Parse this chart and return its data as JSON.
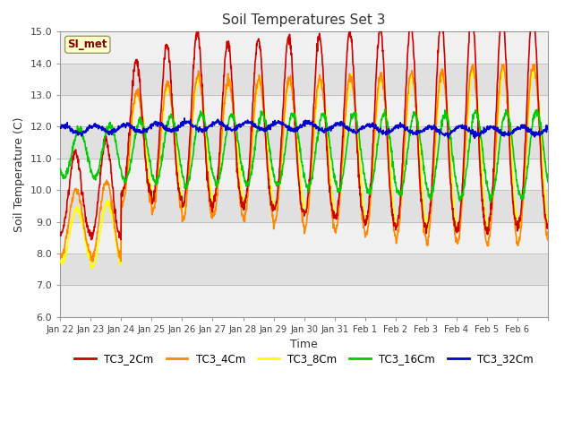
{
  "title": "Soil Temperatures Set 3",
  "xlabel": "Time",
  "ylabel": "Soil Temperature (C)",
  "ylim": [
    6.0,
    15.0
  ],
  "yticks": [
    6.0,
    7.0,
    8.0,
    9.0,
    10.0,
    11.0,
    12.0,
    13.0,
    14.0,
    15.0
  ],
  "series": {
    "TC3_2Cm": {
      "color": "#CC0000",
      "lw": 1.2
    },
    "TC3_4Cm": {
      "color": "#FF8800",
      "lw": 1.2
    },
    "TC3_8Cm": {
      "color": "#FFFF00",
      "lw": 1.2
    },
    "TC3_16Cm": {
      "color": "#00CC00",
      "lw": 1.2
    },
    "TC3_32Cm": {
      "color": "#0000CC",
      "lw": 1.2
    }
  },
  "xtick_labels": [
    "Jan 22",
    "Jan 23",
    "Jan 24",
    "Jan 25",
    "Jan 26",
    "Jan 27",
    "Jan 28",
    "Jan 29",
    "Jan 30",
    "Jan 31",
    "Feb 1",
    "Feb 2",
    "Feb 3",
    "Feb 4",
    "Feb 5",
    "Feb 6"
  ],
  "background_color": "#ffffff",
  "plot_bg_even": "#e8e8e8",
  "plot_bg_odd": "#f8f8f8",
  "grid_color": "#cccccc",
  "annotation_text": "SI_met",
  "annotation_color": "#8B0000",
  "annotation_bg": "#ffffcc"
}
